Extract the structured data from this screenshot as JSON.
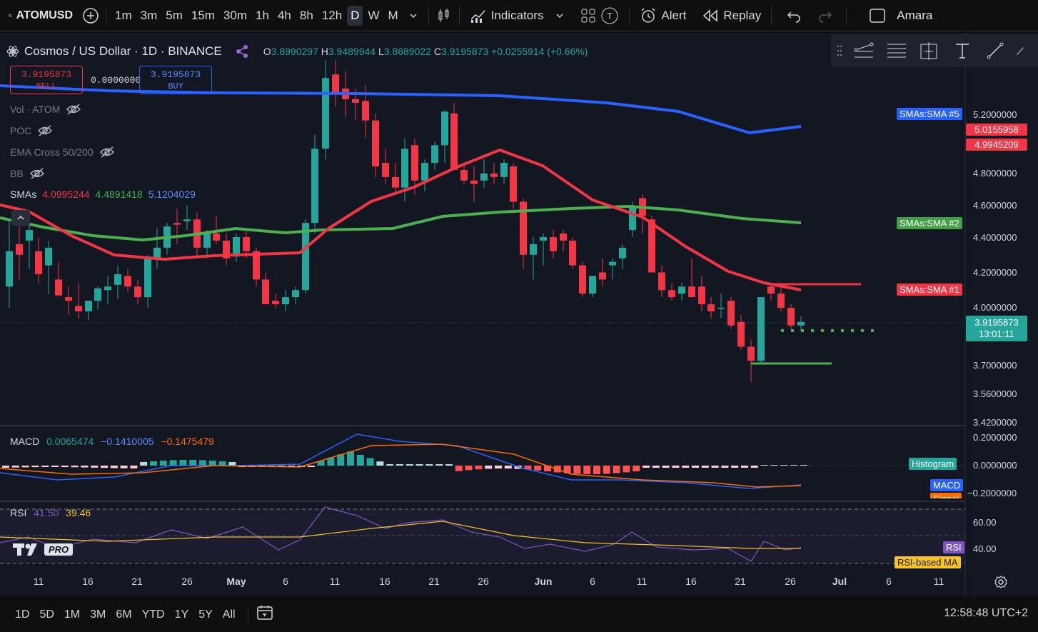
{
  "toolbar": {
    "symbol": "ATOMUSD",
    "intervals": [
      "1m",
      "3m",
      "5m",
      "15m",
      "30m",
      "1h",
      "4h",
      "8h",
      "12h",
      "D",
      "W",
      "M"
    ],
    "active_interval": "D",
    "indicators_label": "Indicators",
    "alert_label": "Alert",
    "replay_label": "Replay",
    "user_label": "Amara",
    "t_label": "T"
  },
  "legend": {
    "title": "Cosmos / US Dollar · 1D · BINANCE",
    "o_label": "O",
    "o": "3.8990297",
    "h_label": "H",
    "h": "3.9489944",
    "l_label": "L",
    "l": "3.8689022",
    "c_label": "C",
    "c": "3.9195873",
    "change": "+0.0255914 (+0.66%)"
  },
  "trade": {
    "sell_price": "3.9195873",
    "sell_label": "SELL",
    "spread": "0.0000000",
    "buy_price": "3.9195873",
    "buy_label": "BUY"
  },
  "indicators": [
    {
      "label": "Vol · ATOM"
    },
    {
      "label": "POC"
    },
    {
      "label": "EMA Cross 50/200"
    },
    {
      "label": "BB"
    }
  ],
  "smas_legend": {
    "label": "SMAs",
    "v1": "4.0995244",
    "v2": "4.4891418",
    "v3": "5.1204029"
  },
  "colors": {
    "up": "#26a69a",
    "down": "#f23645",
    "sma1": "#f23645",
    "sma2": "#4caf50",
    "sma3": "#2962ff",
    "macd": "#2962ff",
    "signal": "#ff6d00",
    "rsi": "#7e57c2",
    "rsi_ma": "#f7c325"
  },
  "price_axis": [
    "5.2000000",
    "4.8000000",
    "4.6000000",
    "4.4000000",
    "4.2000000",
    "4.0000000",
    "3.7000000",
    "3.5600000",
    "3.4200000"
  ],
  "price_tags": {
    "sma5_label": "SMAs:SMA #5",
    "sma2_label": "SMAs:SMA #2",
    "sma1_label": "SMAs:SMA #1",
    "high1": "5.0155958",
    "high2": "4.9945209",
    "last": "3.9195873",
    "countdown": "13:01:11"
  },
  "macd": {
    "label": "MACD",
    "v1": "0.0065474",
    "v2": "−0.1410005",
    "v3": "−0.1475479",
    "axis": [
      "0.2000000",
      "0.0000000",
      "−0.2000000"
    ],
    "tag_hist": "Histogram",
    "tag_macd": "MACD",
    "tag_signal": "Signal"
  },
  "rsi": {
    "label": "RSI",
    "v1": "41.50",
    "v2": "39.46",
    "axis": [
      "60.00",
      "40.00"
    ],
    "tag_rsi": "RSI",
    "tag_ma": "RSI-based MA"
  },
  "time_axis": [
    "11",
    "16",
    "21",
    "26",
    "May",
    "6",
    "11",
    "16",
    "21",
    "26",
    "Jun",
    "6",
    "11",
    "16",
    "21",
    "26",
    "Jul",
    "6",
    "11"
  ],
  "logo_text": "PRO",
  "ranges": [
    "1D",
    "5D",
    "1M",
    "3M",
    "6M",
    "YTD",
    "1Y",
    "5Y",
    "All"
  ],
  "clock": "12:58:48 UTC+2"
}
